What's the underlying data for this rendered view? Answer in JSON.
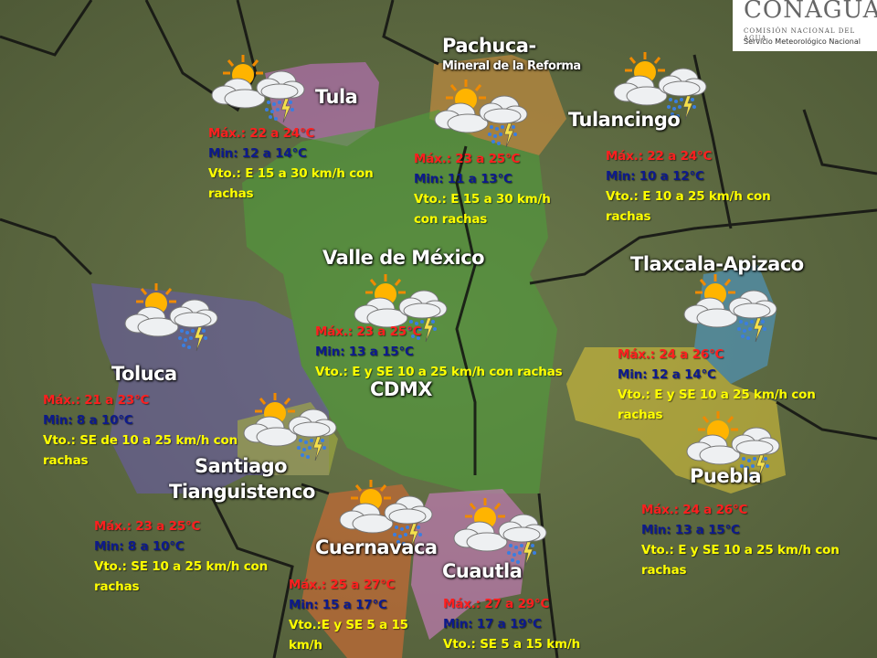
{
  "logo": {
    "name": "CONAGUA",
    "line1": "COMISIÓN NACIONAL DEL AGUA",
    "line2": "Servicio Meteorológico Nacional"
  },
  "colors": {
    "max": "#ff1f1f",
    "min": "#0d1a8c",
    "wind": "#ffff00"
  },
  "regions": [
    {
      "name": "Tula",
      "icon": "sun-cloud-storm-icon",
      "max": "Máx.: 22 a 24°C",
      "min": "Min: 12 a 14°C",
      "wind": "Vto.: E 15 a 30 km/h con rachas"
    },
    {
      "name": "Pachuca-",
      "subname": "Mineral de la Reforma",
      "icon": "sun-cloud-storm-icon",
      "max": "Máx.: 23 a 25°C",
      "min": "Min: 11 a 13°C",
      "wind": "Vto.: E 15 a 30 km/h con rachas"
    },
    {
      "name": "Tulancingo",
      "icon": "sun-cloud-storm-icon",
      "max": "Máx.: 22 a 24°C",
      "min": "Min: 10 a 12°C",
      "wind": "Vto.: E 10 a 25 km/h con rachas"
    },
    {
      "name": "Valle de México",
      "subname": "CDMX",
      "icon": "sun-cloud-storm-icon",
      "max": "Máx.: 23 a 25°C",
      "min": "Min: 13 a 15°C",
      "wind": "Vto.: E y SE 10 a 25 km/h con rachas"
    },
    {
      "name": "Tlaxcala-Apizaco",
      "icon": "sun-cloud-storm-icon",
      "max": "Máx.: 24 a 26°C",
      "min": "Min: 12 a 14°C",
      "wind": "Vto.: E y SE 10 a 25 km/h con rachas"
    },
    {
      "name": "Toluca",
      "icon": "sun-cloud-storm-icon",
      "max": "Máx.: 21 a 23°C",
      "min": "Min: 8 a 10°C",
      "wind": "Vto.: SE de 10 a 25 km/h con rachas"
    },
    {
      "name": "Santiago",
      "subname": "Tianguistenco",
      "icon": "sun-cloud-storm-icon",
      "max": "Máx.: 23 a 25°C",
      "min": "Min: 8 a 10°C",
      "wind": "Vto.: SE 10 a 25 km/h con rachas"
    },
    {
      "name": "Puebla",
      "icon": "sun-cloud-storm-icon",
      "max": "Máx.: 24 a 26°C",
      "min": "Min: 13 a 15°C",
      "wind": "Vto.: E y SE 10 a 25 km/h con rachas"
    },
    {
      "name": "Cuernavaca",
      "icon": "sun-cloud-storm-icon",
      "max": "Máx.: 25 a 27°C",
      "min": "Min: 15 a 17°C",
      "wind": "Vto.:E y SE 5 a 15 km/h"
    },
    {
      "name": "Cuautla",
      "icon": "sun-cloud-storm-icon",
      "max": "Máx.: 27 a 29°C",
      "min": "Min: 17 a 19°C",
      "wind": "Vto.: SE 5 a 15 km/h"
    }
  ]
}
